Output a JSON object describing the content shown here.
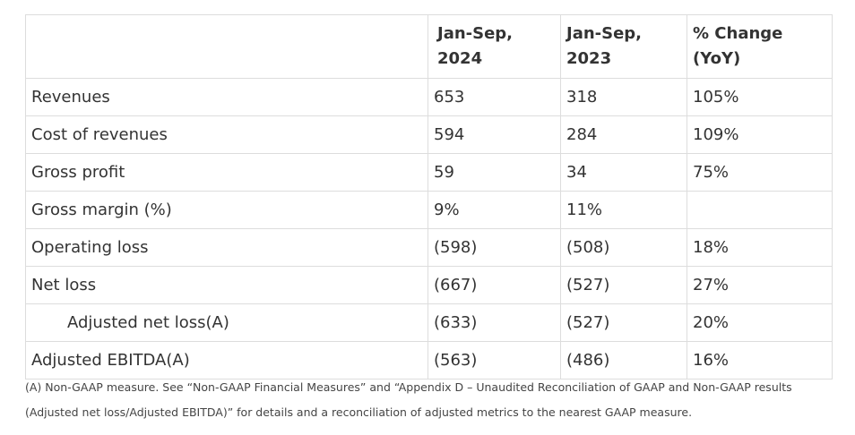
{
  "table": {
    "columns": [
      "",
      "Jan-Sep, 2024",
      "Jan-Sep, 2023",
      "% Change (YoY)"
    ],
    "rows": [
      {
        "label": "Revenues",
        "v2024": "653",
        "v2023": "318",
        "change": "105%"
      },
      {
        "label": "Cost of revenues",
        "v2024": "594",
        "v2023": "284",
        "change": "109%"
      },
      {
        "label": "Gross profit",
        "v2024": "59",
        "v2023": "34",
        "change": "75%"
      },
      {
        "label": "Gross margin (%)",
        "v2024": "9%",
        "v2023": "11%",
        "change": ""
      },
      {
        "label": "Operating loss",
        "v2024": "(598)",
        "v2023": "(508)",
        "change": "18%"
      },
      {
        "label": "Net loss",
        "v2024": "(667)",
        "v2023": "(527)",
        "change": "27%"
      },
      {
        "label": "Adjusted net loss(A)",
        "v2024": "(633)",
        "v2023": "(527)",
        "change": "20%"
      },
      {
        "label": "Adjusted EBITDA(A)",
        "v2024": "(563)",
        "v2023": "(486)",
        "change": "16%"
      }
    ]
  },
  "footnote": "(A) Non-GAAP measure. See “Non-GAAP Financial Measures” and “Appendix D – Unaudited Reconciliation of GAAP and Non-GAAP results (Adjusted net loss/Adjusted EBITDA)” for details and a reconciliation of adjusted metrics to the nearest GAAP measure."
}
